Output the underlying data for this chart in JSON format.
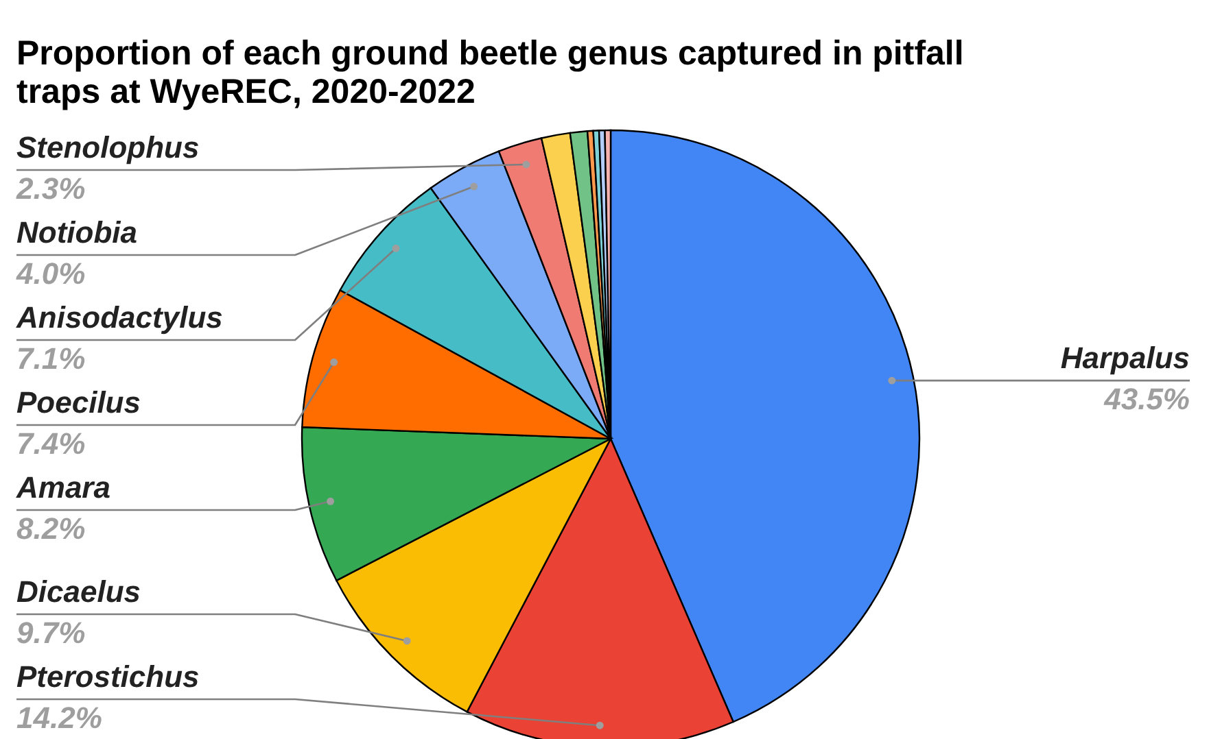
{
  "chart_data": {
    "type": "pie",
    "title": "Proportion of each ground beetle genus captured in pitfall traps at WyeREC, 2020-2022",
    "categories": [
      "Harpalus",
      "Pterostichus",
      "Dicaelus",
      "Amara",
      "Poecilus",
      "Anisodactylus",
      "Notiobia",
      "Stenolophus",
      null,
      null,
      null,
      null,
      null,
      null
    ],
    "values": [
      43.5,
      14.2,
      9.7,
      8.2,
      7.4,
      7.1,
      4.0,
      2.3,
      1.5,
      0.9,
      0.3,
      0.3,
      0.3,
      0.3
    ],
    "value_labels": [
      "43.5%",
      "14.2%",
      "9.7%",
      "8.2%",
      "7.4%",
      "7.1%",
      "4.0%",
      "2.3%",
      null,
      null,
      null,
      null,
      null,
      null
    ],
    "colors": [
      "#4285f4",
      "#ea4335",
      "#fbbc04",
      "#34a853",
      "#ff6d01",
      "#46bdc6",
      "#7baaf7",
      "#f07b72",
      "#fcd04f",
      "#71c287",
      "#ff994d",
      "#7ed1d7",
      "#b3cefb",
      "#f7b4ae"
    ],
    "legend": false
  }
}
